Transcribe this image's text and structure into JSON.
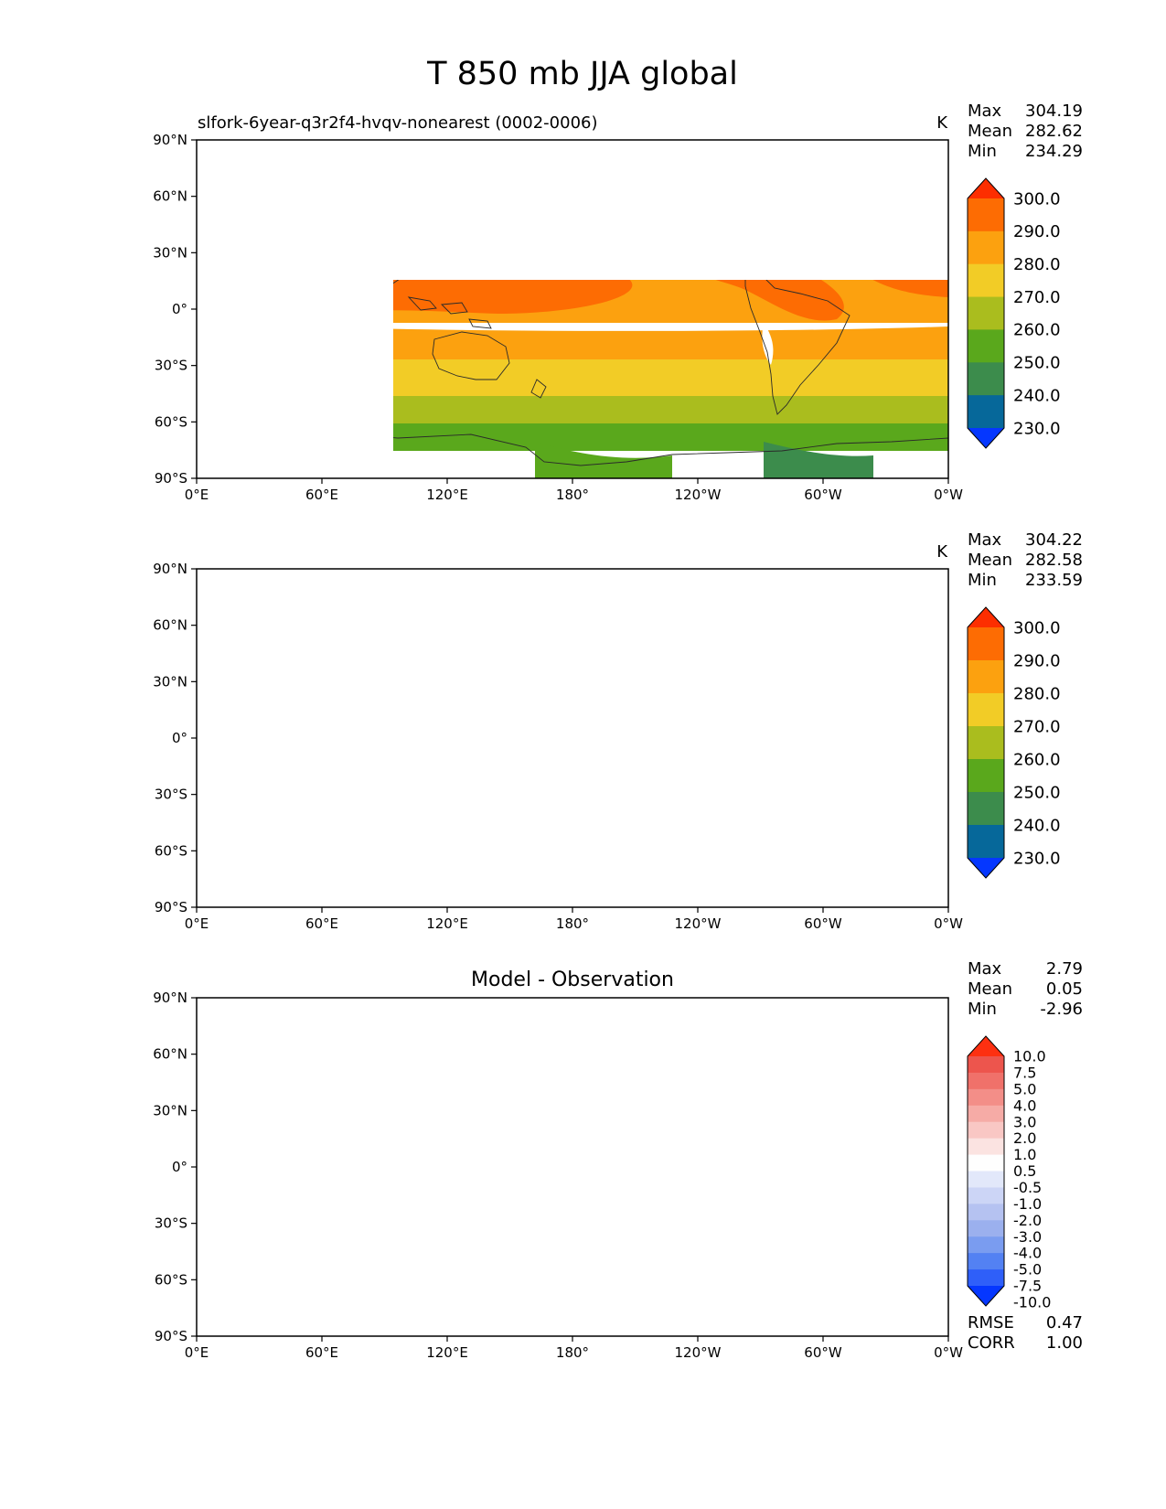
{
  "title": "T 850 mb JJA global",
  "units": "K",
  "x_ticks": [
    "0°E",
    "60°E",
    "120°E",
    "180°",
    "120°W",
    "60°W",
    "0°W"
  ],
  "y_ticks": [
    "90°N",
    "60°N",
    "30°N",
    "0°",
    "30°S",
    "60°S",
    "90°S"
  ],
  "colors": {
    "abs_levels": [
      "#0537ff",
      "#06689a",
      "#3c8c4c",
      "#5aa81c",
      "#aabd1e",
      "#f2cc26",
      "#fca10f",
      "#fd6c03",
      "#fd2e00"
    ],
    "diff_levels": [
      "#0537ff",
      "#2f5ff9",
      "#5381f3",
      "#7a9cf0",
      "#9bb0ee",
      "#b5c2f1",
      "#ccd5f6",
      "#e2e8fa",
      "#fefefe",
      "#fbe3e1",
      "#f9c7c4",
      "#f6aba6",
      "#f38e88",
      "#f0716a",
      "#ed554d",
      "#fd3011"
    ],
    "continent_outline": "#2a2a2a"
  },
  "chart_data": [
    {
      "type": "heatmap",
      "panel": "model",
      "subtitle": "slfork-6year-q3r2f4-hvqv-nonearest (0002-0006)",
      "units": "K",
      "stats": {
        "max_label": "Max",
        "max": "304.19",
        "mean_label": "Mean",
        "mean": "282.62",
        "min_label": "Min",
        "min": "234.29"
      },
      "colorbar_labels": [
        "300.0",
        "290.0",
        "280.0",
        "270.0",
        "260.0",
        "250.0",
        "240.0",
        "230.0"
      ],
      "xlim": [
        0,
        360
      ],
      "ylim": [
        -90,
        90
      ]
    },
    {
      "type": "heatmap",
      "panel": "observation",
      "subtitle": "",
      "units": "K",
      "stats": {
        "max_label": "Max",
        "max": "304.22",
        "mean_label": "Mean",
        "mean": "282.58",
        "min_label": "Min",
        "min": "233.59"
      },
      "colorbar_labels": [
        "300.0",
        "290.0",
        "280.0",
        "270.0",
        "260.0",
        "250.0",
        "240.0",
        "230.0"
      ],
      "xlim": [
        0,
        360
      ],
      "ylim": [
        -90,
        90
      ]
    },
    {
      "type": "heatmap",
      "panel": "difference",
      "subtitle": "Model - Observation",
      "units": "",
      "stats": {
        "max_label": "Max",
        "max": "2.79",
        "mean_label": "Mean",
        "mean": "0.05",
        "min_label": "Min",
        "min": "-2.96"
      },
      "colorbar_labels": [
        "10.0",
        "7.5",
        "5.0",
        "4.0",
        "3.0",
        "2.0",
        "1.0",
        "0.5",
        "-0.5",
        "-1.0",
        "-2.0",
        "-3.0",
        "-4.0",
        "-5.0",
        "-7.5",
        "-10.0"
      ],
      "metrics": {
        "rmse_label": "RMSE",
        "rmse": "0.47",
        "corr_label": "CORR",
        "corr": "1.00"
      },
      "xlim": [
        0,
        360
      ],
      "ylim": [
        -90,
        90
      ]
    }
  ]
}
